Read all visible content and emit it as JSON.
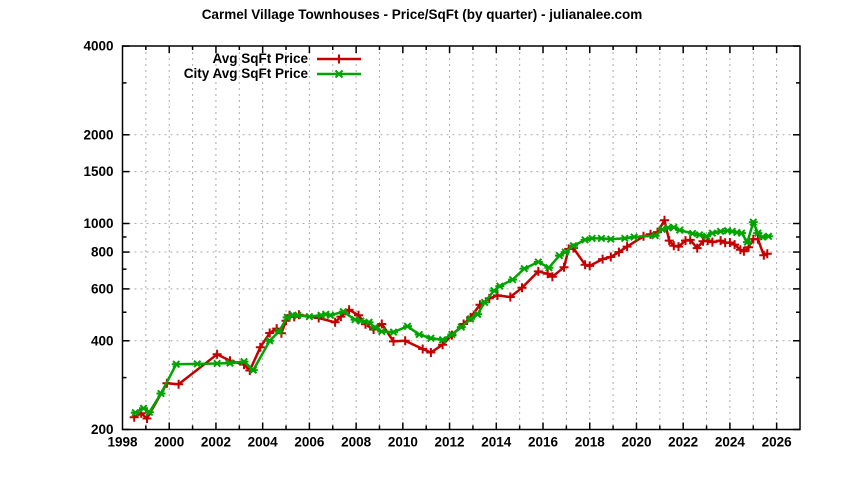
{
  "chart_data": {
    "type": "line",
    "title": "Carmel Village Townhouses - Price/SqFt (by quarter) - julianalee.com",
    "xlabel": "",
    "ylabel": "",
    "x_axis": {
      "min": 1998,
      "max": 2027,
      "labeled_ticks": [
        1998,
        2000,
        2002,
        2004,
        2006,
        2008,
        2010,
        2012,
        2014,
        2016,
        2018,
        2020,
        2022,
        2024,
        2026
      ],
      "gridline_step_years": 1
    },
    "y_axis": {
      "scale": "log",
      "min": 200,
      "max": 4000,
      "labeled_ticks": [
        200,
        400,
        600,
        800,
        1000,
        1500,
        2000,
        4000
      ],
      "minor_ticks": [
        300,
        500,
        700,
        900,
        3000
      ]
    },
    "grid": true,
    "legend_position": "top-left-inside",
    "colors": {
      "axis": "#000000",
      "grid": "#ababab",
      "background": "#ffffff"
    },
    "series": [
      {
        "name": "Avg SqFt Price",
        "color": "#c40000",
        "marker": "plus",
        "points": [
          [
            1998.5,
            220
          ],
          [
            1998.8,
            227
          ],
          [
            1999.05,
            218
          ],
          [
            1999.9,
            287
          ],
          [
            2000.4,
            285
          ],
          [
            2002.05,
            360
          ],
          [
            2002.6,
            342
          ],
          [
            2003.2,
            332
          ],
          [
            2003.45,
            317
          ],
          [
            2003.9,
            380
          ],
          [
            2004.3,
            425
          ],
          [
            2004.6,
            440
          ],
          [
            2004.8,
            424
          ],
          [
            2005.0,
            468
          ],
          [
            2005.15,
            488
          ],
          [
            2005.35,
            482
          ],
          [
            2005.55,
            490
          ],
          [
            2006.4,
            478
          ],
          [
            2007.1,
            462
          ],
          [
            2007.35,
            483
          ],
          [
            2007.7,
            510
          ],
          [
            2008.1,
            488
          ],
          [
            2008.4,
            455
          ],
          [
            2008.75,
            437
          ],
          [
            2009.1,
            456
          ],
          [
            2009.6,
            398
          ],
          [
            2010.1,
            400
          ],
          [
            2010.85,
            375
          ],
          [
            2011.2,
            365
          ],
          [
            2011.7,
            388
          ],
          [
            2012.1,
            418
          ],
          [
            2012.6,
            456
          ],
          [
            2012.9,
            480
          ],
          [
            2013.3,
            530
          ],
          [
            2013.7,
            557
          ],
          [
            2014.05,
            570
          ],
          [
            2014.6,
            563
          ],
          [
            2015.1,
            605
          ],
          [
            2015.8,
            688
          ],
          [
            2016.2,
            675
          ],
          [
            2016.4,
            660
          ],
          [
            2016.9,
            710
          ],
          [
            2017.1,
            820
          ],
          [
            2017.3,
            825
          ],
          [
            2017.8,
            725
          ],
          [
            2018.0,
            718
          ],
          [
            2018.55,
            757
          ],
          [
            2018.9,
            770
          ],
          [
            2019.25,
            800
          ],
          [
            2019.6,
            835
          ],
          [
            2020.3,
            905
          ],
          [
            2020.6,
            920
          ],
          [
            2020.9,
            935
          ],
          [
            2021.2,
            1025
          ],
          [
            2021.4,
            875
          ],
          [
            2021.6,
            840
          ],
          [
            2021.8,
            835
          ],
          [
            2022.1,
            875
          ],
          [
            2022.3,
            880
          ],
          [
            2022.6,
            825
          ],
          [
            2022.85,
            870
          ],
          [
            2023.05,
            875
          ],
          [
            2023.25,
            865
          ],
          [
            2023.6,
            875
          ],
          [
            2023.8,
            860
          ],
          [
            2024.0,
            862
          ],
          [
            2024.2,
            848
          ],
          [
            2024.45,
            815
          ],
          [
            2024.6,
            805
          ],
          [
            2024.8,
            830
          ],
          [
            2025.0,
            885
          ],
          [
            2025.2,
            885
          ],
          [
            2025.45,
            780
          ],
          [
            2025.6,
            790
          ]
        ]
      },
      {
        "name": "City Avg SqFt Price",
        "color": "#00a400",
        "marker": "asterisk",
        "points": [
          [
            1998.55,
            228
          ],
          [
            1998.9,
            236
          ],
          [
            1999.15,
            229
          ],
          [
            1999.65,
            265
          ],
          [
            2000.3,
            333
          ],
          [
            2001.2,
            334
          ],
          [
            2002.05,
            335
          ],
          [
            2002.6,
            336
          ],
          [
            2003.2,
            340
          ],
          [
            2003.6,
            318
          ],
          [
            2004.3,
            400
          ],
          [
            2004.7,
            430
          ],
          [
            2005.05,
            480
          ],
          [
            2005.3,
            488
          ],
          [
            2005.5,
            488
          ],
          [
            2006.0,
            483
          ],
          [
            2006.5,
            488
          ],
          [
            2006.7,
            492
          ],
          [
            2006.9,
            488
          ],
          [
            2007.45,
            502
          ],
          [
            2007.95,
            472
          ],
          [
            2008.2,
            467
          ],
          [
            2008.55,
            462
          ],
          [
            2008.8,
            444
          ],
          [
            2009.1,
            430
          ],
          [
            2009.6,
            428
          ],
          [
            2010.2,
            448
          ],
          [
            2010.7,
            420
          ],
          [
            2011.2,
            408
          ],
          [
            2011.7,
            403
          ],
          [
            2012.1,
            420
          ],
          [
            2012.5,
            445
          ],
          [
            2012.9,
            475
          ],
          [
            2013.2,
            492
          ],
          [
            2013.5,
            540
          ],
          [
            2013.9,
            592
          ],
          [
            2014.15,
            613
          ],
          [
            2014.7,
            645
          ],
          [
            2015.2,
            703
          ],
          [
            2015.8,
            740
          ],
          [
            2016.25,
            708
          ],
          [
            2016.7,
            778
          ],
          [
            2016.95,
            800
          ],
          [
            2017.3,
            840
          ],
          [
            2017.8,
            880
          ],
          [
            2018.1,
            890
          ],
          [
            2018.5,
            890
          ],
          [
            2018.9,
            885
          ],
          [
            2019.5,
            890
          ],
          [
            2019.9,
            900
          ],
          [
            2020.8,
            910
          ],
          [
            2021.1,
            955
          ],
          [
            2021.35,
            968
          ],
          [
            2021.6,
            970
          ],
          [
            2021.85,
            950
          ],
          [
            2022.4,
            925
          ],
          [
            2022.7,
            915
          ],
          [
            2023.0,
            905
          ],
          [
            2023.25,
            928
          ],
          [
            2023.6,
            940
          ],
          [
            2023.9,
            945
          ],
          [
            2024.1,
            940
          ],
          [
            2024.3,
            932
          ],
          [
            2024.5,
            928
          ],
          [
            2024.75,
            865
          ],
          [
            2025.0,
            1010
          ],
          [
            2025.2,
            928
          ],
          [
            2025.4,
            900
          ],
          [
            2025.65,
            905
          ]
        ]
      }
    ]
  }
}
